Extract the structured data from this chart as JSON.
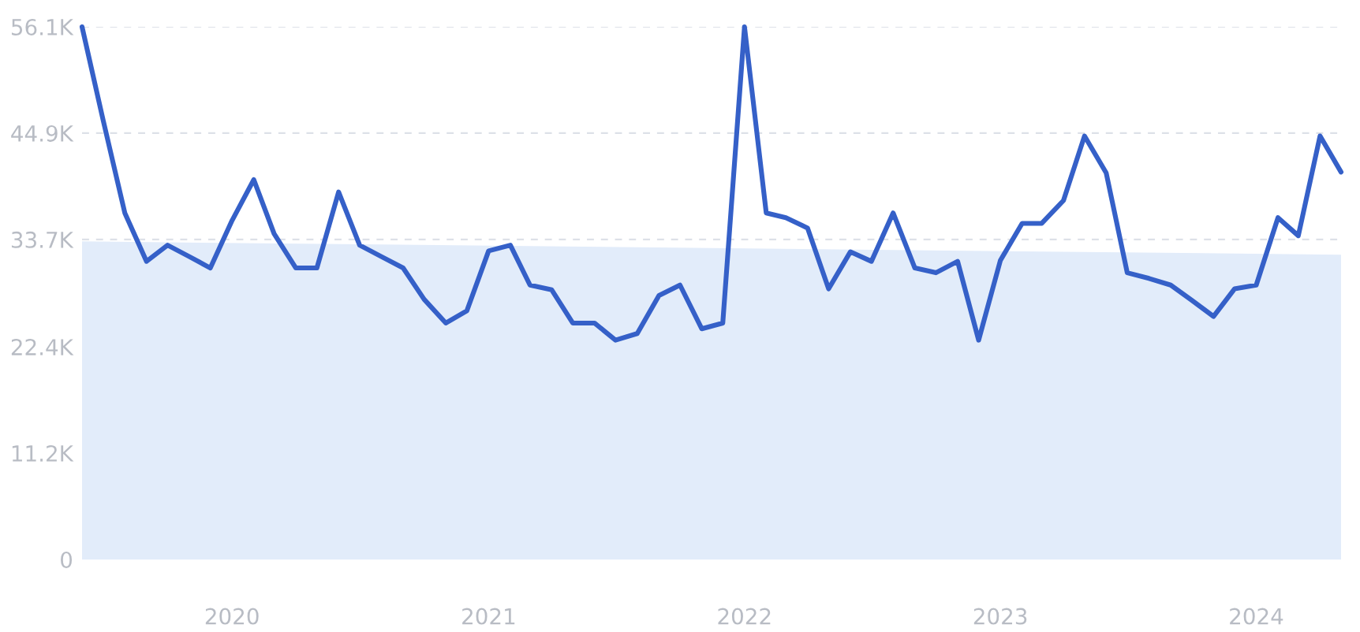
{
  "chart_data": {
    "type": "line",
    "x": [
      "2019-06",
      "2019-07",
      "2019-08",
      "2019-09",
      "2019-10",
      "2019-11",
      "2019-12",
      "2020-01",
      "2020-02",
      "2020-03",
      "2020-04",
      "2020-05",
      "2020-06",
      "2020-07",
      "2020-08",
      "2020-09",
      "2020-10",
      "2020-11",
      "2020-12",
      "2021-01",
      "2021-02",
      "2021-03",
      "2021-04",
      "2021-05",
      "2021-06",
      "2021-07",
      "2021-08",
      "2021-09",
      "2021-10",
      "2021-11",
      "2021-12",
      "2022-01",
      "2022-02",
      "2022-03",
      "2022-04",
      "2022-05",
      "2022-06",
      "2022-07",
      "2022-08",
      "2022-09",
      "2022-10",
      "2022-11",
      "2022-12",
      "2023-01",
      "2023-02",
      "2023-03",
      "2023-04",
      "2023-05",
      "2023-06",
      "2023-07",
      "2023-08",
      "2023-09",
      "2023-10",
      "2023-11",
      "2023-12",
      "2024-01",
      "2024-02",
      "2024-03",
      "2024-04",
      "2024-05"
    ],
    "series": [
      {
        "type": "area",
        "color": "#e2ecfa",
        "x": [
          "2019-06",
          "2024-05"
        ],
        "values": [
          33500,
          32100
        ]
      },
      {
        "color": "#3560c8",
        "values": [
          56100,
          46300,
          36500,
          31400,
          33100,
          31900,
          30700,
          35700,
          40000,
          34300,
          30700,
          30700,
          38700,
          33100,
          31900,
          30700,
          27400,
          24900,
          26200,
          32500,
          33100,
          28900,
          28400,
          24900,
          24900,
          23100,
          23800,
          27800,
          28900,
          24300,
          24900,
          56100,
          36500,
          36000,
          34900,
          28500,
          32400,
          31400,
          36500,
          30700,
          30200,
          31400,
          23100,
          31500,
          35400,
          35400,
          37800,
          44600,
          40700,
          30200,
          29600,
          28900,
          27300,
          25600,
          28500,
          28900,
          36000,
          34100,
          44600,
          40800
        ]
      }
    ],
    "xlim": [
      "2019-06",
      "2024-05"
    ],
    "xticks": [
      {
        "value": "2020-01",
        "label": "2020"
      },
      {
        "value": "2021-01",
        "label": "2021"
      },
      {
        "value": "2022-01",
        "label": "2022"
      },
      {
        "value": "2023-01",
        "label": "2023"
      },
      {
        "value": "2024-01",
        "label": "2024"
      }
    ],
    "ylim": [
      0,
      56100
    ],
    "yticks": [
      0,
      {
        "value": 11200,
        "label": "11.2K"
      },
      {
        "value": 22400,
        "label": "22.4K"
      },
      {
        "value": 33700,
        "label": "33.7K"
      },
      {
        "value": 44900,
        "label": "44.9K"
      },
      {
        "value": 56100,
        "label": "56.1K"
      }
    ],
    "grid": "y",
    "marker": "none",
    "line_style": "solid"
  }
}
